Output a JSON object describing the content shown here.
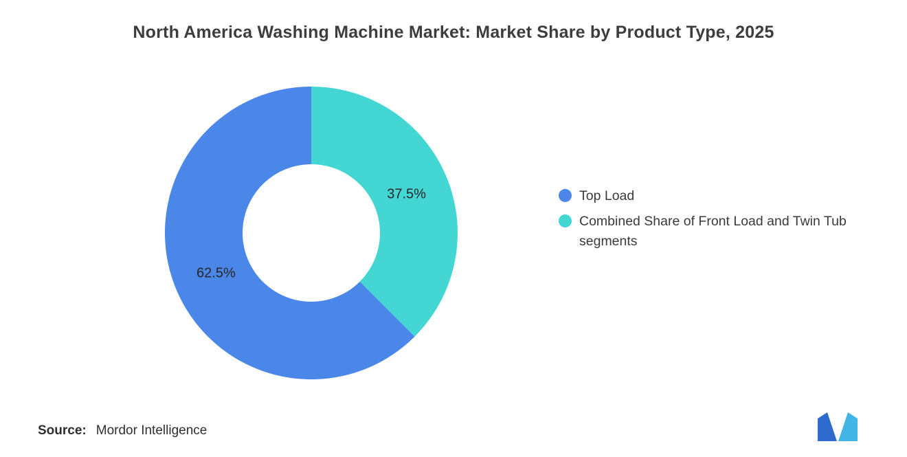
{
  "title": "North America Washing Machine Market: Market Share by Product Type, 2025",
  "source": {
    "label": "Source:",
    "value": "Mordor Intelligence"
  },
  "logo": {
    "name": "mordor-intelligence-logo",
    "color_left": "#2F6BCC",
    "color_right": "#41B6E6"
  },
  "chart_data": {
    "type": "pie",
    "subtype": "donut",
    "title": "North America Washing Machine Market: Market Share by Product Type, 2025",
    "unit": "%",
    "start_angle_deg": 135,
    "direction": "clockwise",
    "inner_radius_ratio": 0.47,
    "background": "#FFFFFF",
    "segments": [
      {
        "id": "top-load",
        "label": "Top Load",
        "value": 62.5,
        "data_label": "62.5%",
        "color": "#4A87E8"
      },
      {
        "id": "front-load-twin-tub",
        "label": "Combined Share of Front Load and Twin Tub segments",
        "value": 37.5,
        "data_label": "37.5%",
        "color": "#43D6D2"
      }
    ],
    "legend": [
      {
        "label": "Top Load",
        "color": "#4A87E8"
      },
      {
        "label": "Combined Share of Front Load and Twin Tub segments",
        "color": "#43D6D2"
      }
    ],
    "legend_position": "right"
  }
}
